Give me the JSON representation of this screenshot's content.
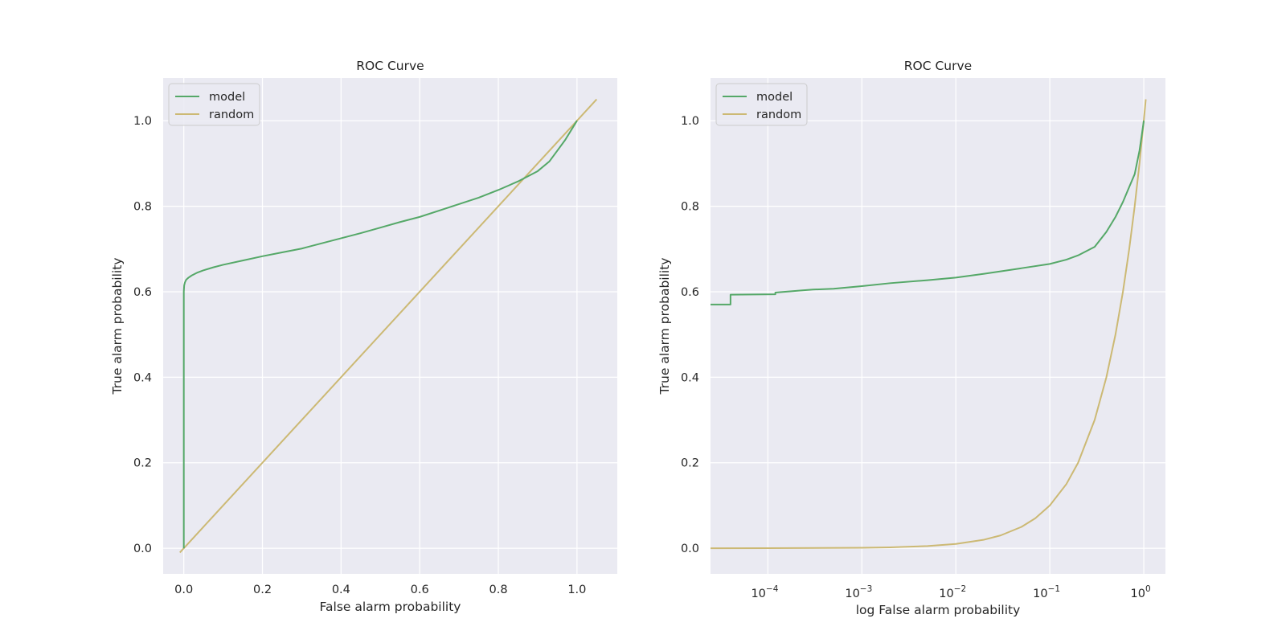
{
  "chart_data": [
    {
      "type": "line",
      "title": "ROC Curve",
      "xlabel": "False alarm probability",
      "ylabel": "True alarm probability",
      "xscale": "linear",
      "xlim": [
        -0.0525,
        1.1025
      ],
      "ylim": [
        -0.06,
        1.1
      ],
      "xticks": [
        0.0,
        0.2,
        0.4,
        0.6,
        0.8,
        1.0
      ],
      "xtick_labels": [
        "0.0",
        "0.2",
        "0.4",
        "0.6",
        "0.8",
        "1.0"
      ],
      "yticks": [
        0.0,
        0.2,
        0.4,
        0.6,
        0.8,
        1.0
      ],
      "ytick_labels": [
        "0.0",
        "0.2",
        "0.4",
        "0.6",
        "0.8",
        "1.0"
      ],
      "grid": true,
      "background": "#eaeaf2",
      "legend": {
        "position": "upper-left",
        "entries": [
          "model",
          "random"
        ]
      },
      "series": [
        {
          "name": "model",
          "color": "#55a868",
          "x": [
            0.0,
            0.0,
            0.001,
            0.003,
            0.006,
            0.012,
            0.02,
            0.035,
            0.05,
            0.075,
            0.1,
            0.15,
            0.2,
            0.25,
            0.3,
            0.35,
            0.4,
            0.45,
            0.5,
            0.55,
            0.6,
            0.65,
            0.7,
            0.75,
            0.8,
            0.85,
            0.9,
            0.93,
            0.95,
            0.97,
            0.99,
            1.0
          ],
          "y": [
            0.0,
            0.6,
            0.615,
            0.622,
            0.628,
            0.633,
            0.638,
            0.645,
            0.65,
            0.657,
            0.663,
            0.673,
            0.683,
            0.692,
            0.701,
            0.713,
            0.725,
            0.737,
            0.75,
            0.763,
            0.775,
            0.79,
            0.805,
            0.82,
            0.838,
            0.858,
            0.882,
            0.905,
            0.93,
            0.955,
            0.985,
            1.0
          ]
        },
        {
          "name": "random",
          "color": "#ccb974",
          "x": [
            -0.01,
            1.05
          ],
          "y": [
            -0.01,
            1.05
          ]
        }
      ]
    },
    {
      "type": "line",
      "title": "ROC Curve",
      "xlabel": "log False alarm probability",
      "ylabel": "True alarm probability",
      "xscale": "log",
      "xlim": [
        2.45e-05,
        1.7
      ],
      "ylim": [
        -0.06,
        1.1
      ],
      "xticks": [
        0.0001,
        0.001,
        0.01,
        0.1,
        1
      ],
      "xtick_labels": [
        {
          "base": "10",
          "exp": "−4"
        },
        {
          "base": "10",
          "exp": "−3"
        },
        {
          "base": "10",
          "exp": "−2"
        },
        {
          "base": "10",
          "exp": "−1"
        },
        {
          "base": "10",
          "exp": "0"
        }
      ],
      "yticks": [
        0.0,
        0.2,
        0.4,
        0.6,
        0.8,
        1.0
      ],
      "ytick_labels": [
        "0.0",
        "0.2",
        "0.4",
        "0.6",
        "0.8",
        "1.0"
      ],
      "grid": true,
      "background": "#eaeaf2",
      "legend": {
        "position": "upper-left",
        "entries": [
          "model",
          "random"
        ]
      },
      "series": [
        {
          "name": "model",
          "color": "#55a868",
          "x": [
            2.45e-05,
            4e-05,
            4e-05,
            0.00012,
            0.00012,
            0.0002,
            0.0003,
            0.0005,
            0.001,
            0.002,
            0.005,
            0.01,
            0.02,
            0.05,
            0.1,
            0.15,
            0.2,
            0.3,
            0.4,
            0.5,
            0.6,
            0.7,
            0.8,
            0.9,
            0.95,
            1.0
          ],
          "y": [
            0.57,
            0.57,
            0.593,
            0.594,
            0.598,
            0.602,
            0.605,
            0.607,
            0.613,
            0.62,
            0.627,
            0.633,
            0.642,
            0.655,
            0.665,
            0.675,
            0.685,
            0.705,
            0.74,
            0.775,
            0.81,
            0.845,
            0.875,
            0.93,
            0.965,
            1.0
          ]
        },
        {
          "name": "random",
          "color": "#ccb974",
          "x": [
            2.45e-05,
            0.0001,
            0.001,
            0.002,
            0.005,
            0.01,
            0.02,
            0.03,
            0.05,
            0.07,
            0.1,
            0.15,
            0.2,
            0.3,
            0.4,
            0.5,
            0.6,
            0.7,
            0.8,
            0.9,
            1.0,
            1.05
          ],
          "y": [
            2.45e-05,
            0.0001,
            0.001,
            0.002,
            0.005,
            0.01,
            0.02,
            0.03,
            0.05,
            0.07,
            0.1,
            0.15,
            0.2,
            0.3,
            0.4,
            0.5,
            0.6,
            0.7,
            0.8,
            0.9,
            1.0,
            1.05
          ]
        }
      ]
    }
  ]
}
